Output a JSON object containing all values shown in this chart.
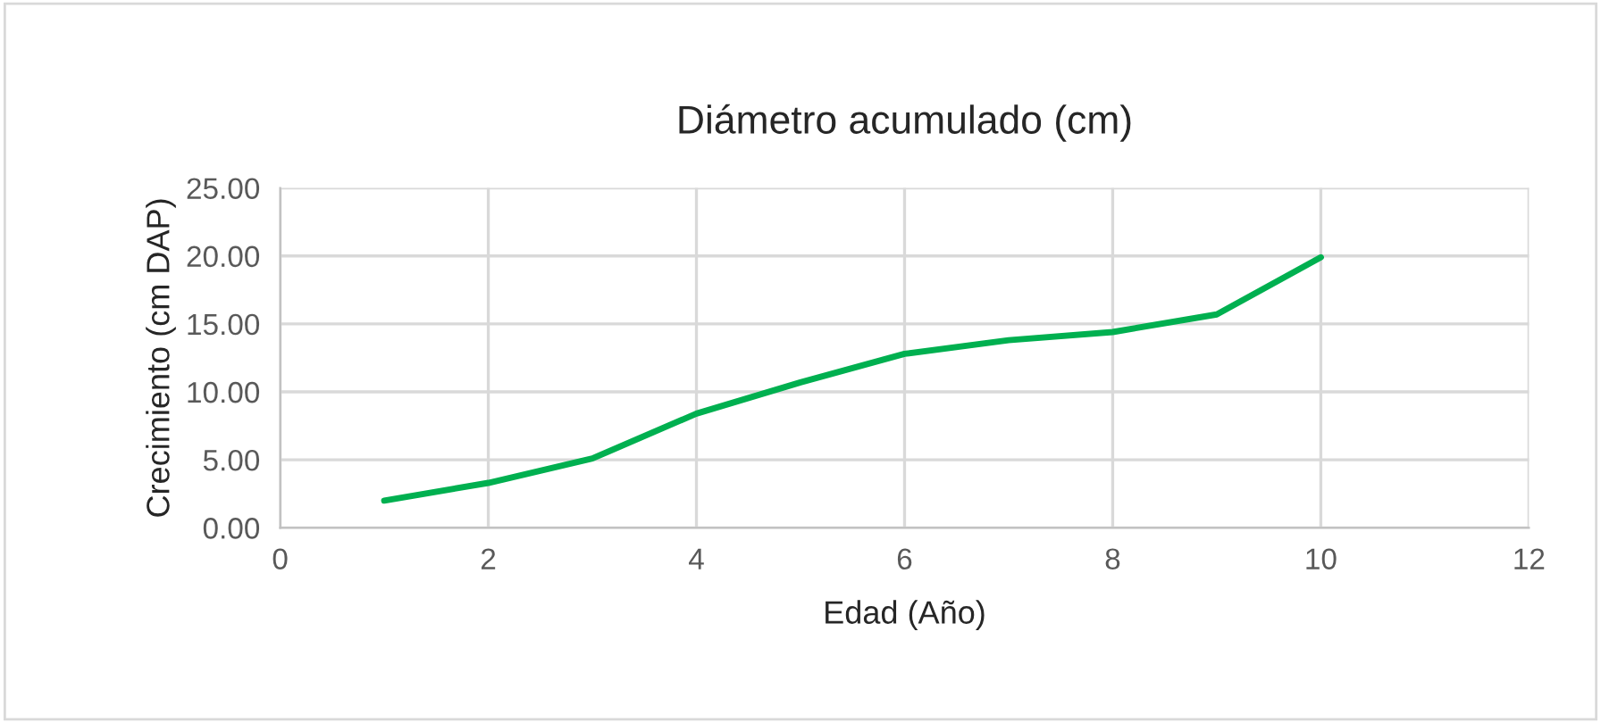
{
  "chart_data": {
    "type": "line",
    "title": "Diámetro acumulado (cm)",
    "xlabel": "Edad (Año)",
    "ylabel": "Crecimiento (cm DAP)",
    "x": [
      1,
      2,
      3,
      4,
      5,
      6,
      7,
      8,
      9,
      10
    ],
    "series": [
      {
        "color": "#00b050",
        "values": [
          2.0,
          3.3,
          5.1,
          8.4,
          10.7,
          12.8,
          13.8,
          14.4,
          15.7,
          19.9
        ]
      }
    ],
    "xlim": [
      0,
      12
    ],
    "xticks": [
      0,
      2,
      4,
      6,
      8,
      10,
      12
    ],
    "ylim": [
      0,
      25
    ],
    "yticks": [
      {
        "value": 0,
        "label": "0.00"
      },
      {
        "value": 5,
        "label": "5.00"
      },
      {
        "value": 10,
        "label": "10.00"
      },
      {
        "value": 15,
        "label": "15.00"
      },
      {
        "value": 20,
        "label": "20.00"
      },
      {
        "value": 25,
        "label": "25.00"
      }
    ],
    "grid": true,
    "marker": "none",
    "line_style": "solid"
  }
}
